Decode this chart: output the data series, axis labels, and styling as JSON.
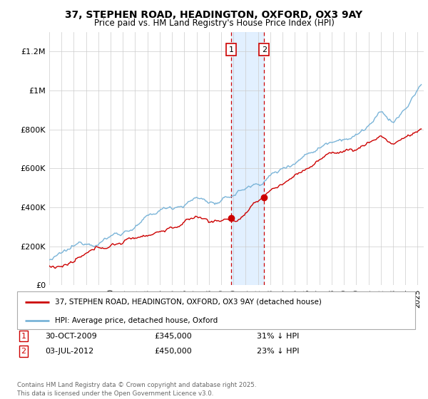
{
  "title_line1": "37, STEPHEN ROAD, HEADINGTON, OXFORD, OX3 9AY",
  "title_line2": "Price paid vs. HM Land Registry's House Price Index (HPI)",
  "ylim": [
    0,
    1300000
  ],
  "yticks": [
    0,
    200000,
    400000,
    600000,
    800000,
    1000000,
    1200000
  ],
  "ytick_labels": [
    "£0",
    "£200K",
    "£400K",
    "£600K",
    "£800K",
    "£1M",
    "£1.2M"
  ],
  "sale1_date_num": 2009.83,
  "sale1_price": 345000,
  "sale1_label": "30-OCT-2009",
  "sale1_pct": "31% ↓ HPI",
  "sale2_date_num": 2012.5,
  "sale2_price": 450000,
  "sale2_label": "03-JUL-2012",
  "sale2_pct": "23% ↓ HPI",
  "hpi_color": "#7ab4d8",
  "price_color": "#cc0000",
  "shade_color": "#ddeeff",
  "legend1_label": "37, STEPHEN ROAD, HEADINGTON, OXFORD, OX3 9AY (detached house)",
  "legend2_label": "HPI: Average price, detached house, Oxford",
  "footer": "Contains HM Land Registry data © Crown copyright and database right 2025.\nThis data is licensed under the Open Government Licence v3.0.",
  "background_color": "#ffffff",
  "grid_color": "#cccccc"
}
